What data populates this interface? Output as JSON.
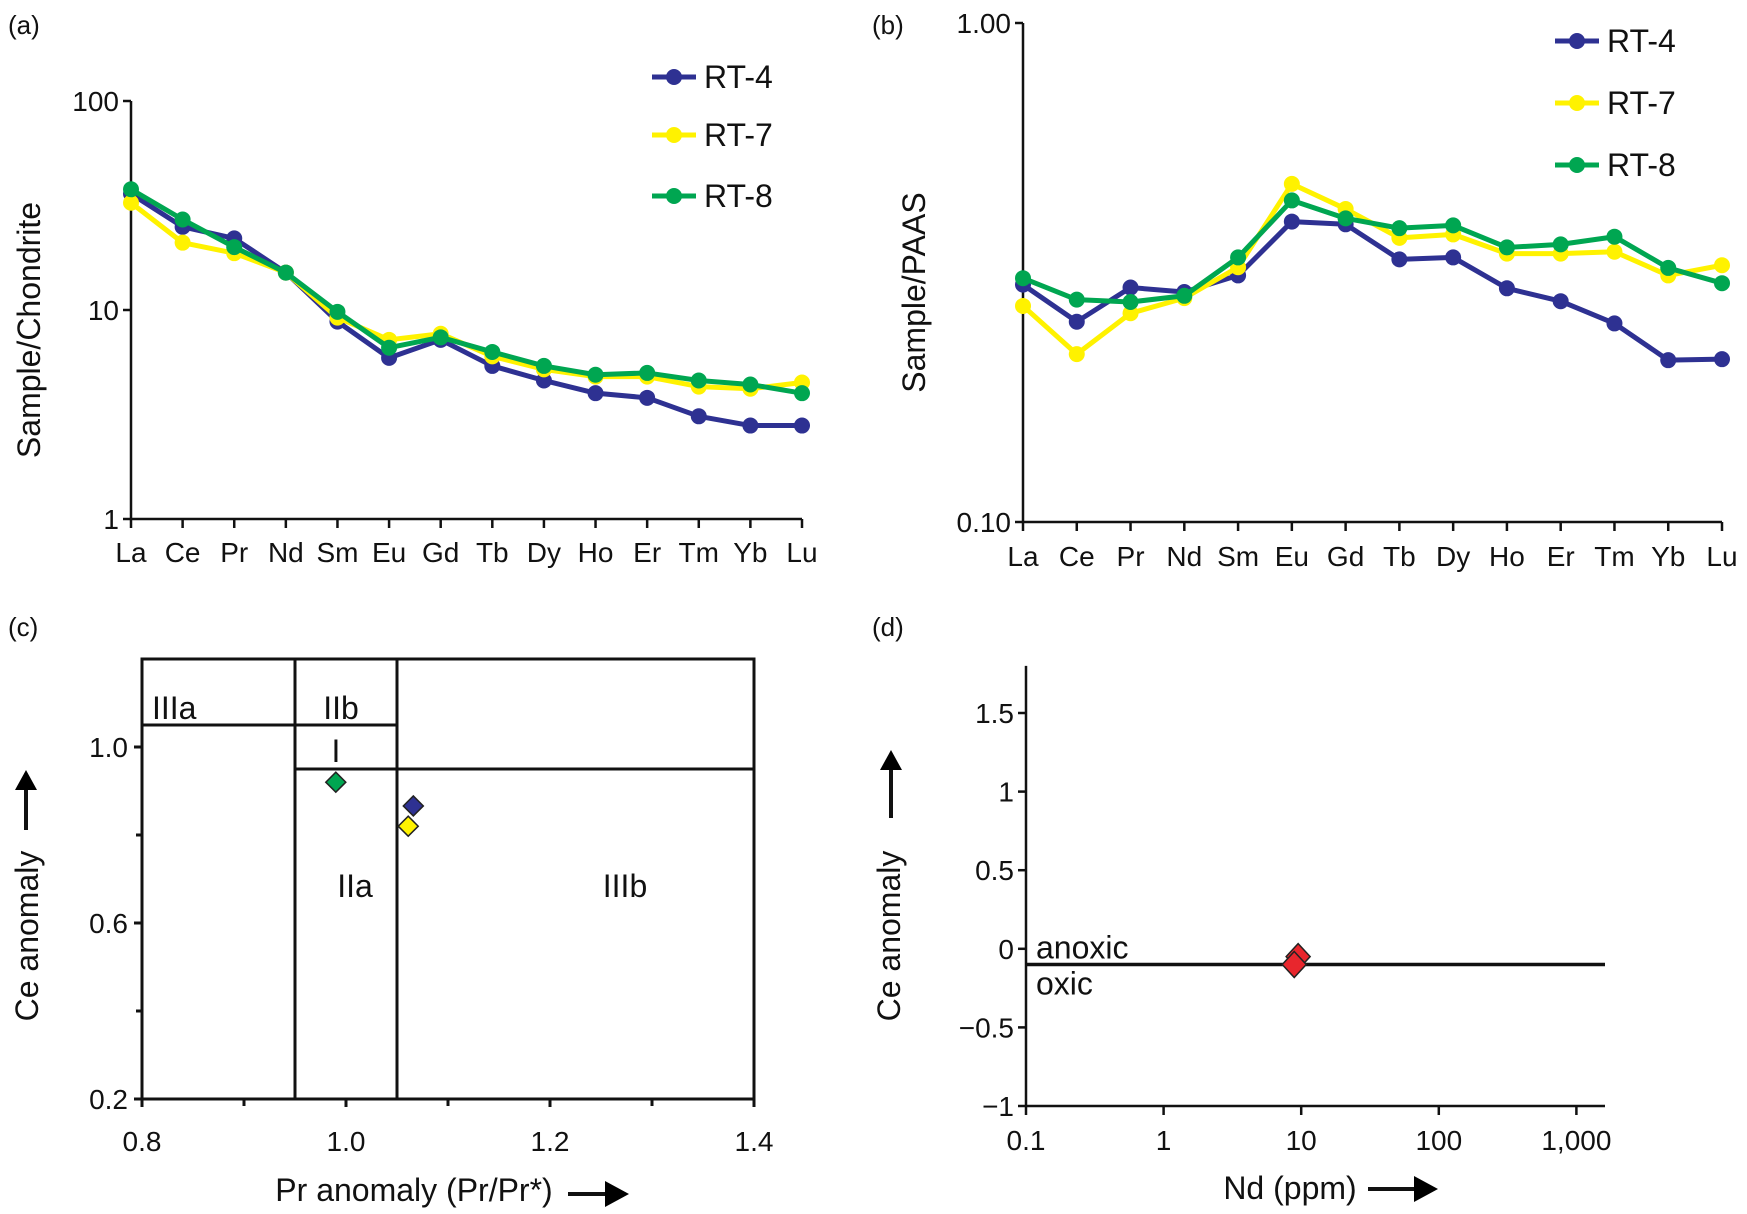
{
  "colors": {
    "RT-4": "#2e3192",
    "RT-7": "#fff200",
    "RT-8": "#00a651",
    "marker_d": "#e8262d",
    "axis": "#111111"
  },
  "chart_data": [
    {
      "panel": "(a)",
      "type": "line",
      "ylabel": "Sample/Chondrite",
      "yscale": "log",
      "ylim": [
        1,
        100
      ],
      "yticks": [
        "1",
        "10",
        "100"
      ],
      "categories": [
        "La",
        "Ce",
        "Pr",
        "Nd",
        "Sm",
        "Eu",
        "Gd",
        "Tb",
        "Dy",
        "Ho",
        "Er",
        "Tm",
        "Yb",
        "Lu"
      ],
      "legend": "top-right",
      "series": [
        {
          "name": "RT-4",
          "values": [
            36,
            25,
            22,
            15.1,
            8.8,
            5.9,
            7.2,
            5.4,
            4.6,
            4.0,
            3.8,
            3.1,
            2.8,
            2.8
          ]
        },
        {
          "name": "RT-7",
          "values": [
            32.6,
            21,
            18.7,
            15.1,
            9.2,
            7.2,
            7.7,
            6.0,
            5.2,
            4.8,
            4.8,
            4.3,
            4.2,
            4.5
          ]
        },
        {
          "name": "RT-8",
          "values": [
            37.8,
            27.1,
            20,
            15.1,
            9.8,
            6.6,
            7.4,
            6.3,
            5.4,
            4.9,
            5.0,
            4.6,
            4.4,
            4.0
          ]
        }
      ]
    },
    {
      "panel": "(b)",
      "type": "line",
      "ylabel": "Sample/PAAS",
      "yscale": "log",
      "ylim": [
        0.1,
        1.0
      ],
      "yticks": [
        "0.10",
        "1.00"
      ],
      "categories": [
        "La",
        "Ce",
        "Pr",
        "Nd",
        "Sm",
        "Eu",
        "Gd",
        "Tb",
        "Dy",
        "Ho",
        "Er",
        "Tm",
        "Yb",
        "Lu"
      ],
      "legend": "top-right",
      "series": [
        {
          "name": "RT-4",
          "values": [
            0.299,
            0.252,
            0.295,
            0.289,
            0.312,
            0.4,
            0.395,
            0.336,
            0.339,
            0.294,
            0.277,
            0.25,
            0.211,
            0.212
          ]
        },
        {
          "name": "RT-7",
          "values": [
            0.271,
            0.217,
            0.262,
            0.281,
            0.324,
            0.476,
            0.424,
            0.371,
            0.377,
            0.345,
            0.345,
            0.348,
            0.312,
            0.327
          ]
        },
        {
          "name": "RT-8",
          "values": [
            0.308,
            0.279,
            0.276,
            0.284,
            0.339,
            0.441,
            0.406,
            0.388,
            0.393,
            0.355,
            0.36,
            0.373,
            0.323,
            0.301
          ]
        }
      ]
    },
    {
      "panel": "(c)",
      "type": "scatter",
      "xlabel": "Pr anomaly (Pr/Pr*)",
      "ylabel": "Ce anomaly",
      "xlim": [
        0.8,
        1.4
      ],
      "ylim": [
        0.2,
        1.2
      ],
      "xticks": [
        "0.8",
        "1.0",
        "1.2",
        "1.4"
      ],
      "yticks": [
        "0.2",
        "0.6",
        "1.0"
      ],
      "regions": [
        {
          "label": "IIIa"
        },
        {
          "label": "IIb"
        },
        {
          "label": "I"
        },
        {
          "label": "IIa"
        },
        {
          "label": "IIIb"
        }
      ],
      "boundaries": {
        "x": [
          0.95,
          1.05
        ],
        "y": [
          1.05,
          0.95
        ]
      },
      "points": [
        {
          "sample": "RT-8",
          "x": 0.99,
          "y": 0.92
        },
        {
          "sample": "RT-4",
          "x": 1.066,
          "y": 0.866
        },
        {
          "sample": "RT-7",
          "x": 1.061,
          "y": 0.82
        }
      ]
    },
    {
      "panel": "(d)",
      "type": "scatter",
      "xlabel": "Nd (ppm)",
      "ylabel": "Ce anomaly",
      "xscale": "log",
      "xlim": [
        0.1,
        1600
      ],
      "ylim": [
        -1,
        1.8
      ],
      "xticks": [
        "0.1",
        "1",
        "10",
        "100",
        "1,000"
      ],
      "yticks": [
        "−1",
        "−0.5",
        "0",
        "0.5",
        "1",
        "1.5"
      ],
      "threshold": -0.1,
      "annotations": [
        "anoxic",
        "oxic"
      ],
      "points": [
        {
          "x": 9.5,
          "y": -0.05
        },
        {
          "x": 8.9,
          "y": -0.1
        }
      ]
    }
  ]
}
